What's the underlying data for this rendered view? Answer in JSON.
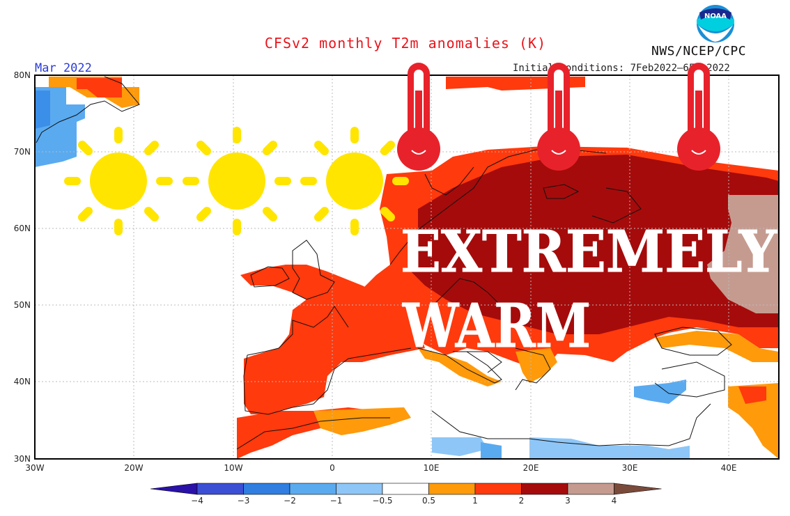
{
  "header": {
    "title": "CFSv2 monthly T2m anomalies (K)",
    "month": "Mar 2022",
    "init_conditions": "Initial conditions: 7Feb2022–6Feb2022",
    "agency": "NWS/NCEP/CPC",
    "logo_text": "NOAA"
  },
  "overlay": {
    "line1": "EXTREMELY",
    "line2": "WARM"
  },
  "axes": {
    "lat_labels": [
      "80N",
      "70N",
      "60N",
      "50N",
      "40N",
      "30N"
    ],
    "lon_labels": [
      "30W",
      "20W",
      "10W",
      "0",
      "10E",
      "20E",
      "30E",
      "40E"
    ]
  },
  "colorbar": {
    "labels": [
      "−4",
      "−3",
      "−2",
      "−1",
      "−0.5",
      "0.5",
      "1",
      "2",
      "3",
      "4"
    ],
    "colors": [
      "#2a11a8",
      "#3a4fd4",
      "#2f7ee0",
      "#5aaaf0",
      "#8ec6f7",
      "#ffffff",
      "#ff9a0a",
      "#ff3a0d",
      "#a50b0b",
      "#c69b8f",
      "#7a4a3a"
    ]
  },
  "icons": {
    "suns": [
      "sun-icon",
      "sun-icon",
      "sun-icon"
    ],
    "thermometers": [
      "thermometer-icon",
      "thermometer-icon",
      "thermometer-icon"
    ]
  },
  "colors": {
    "title": "#e8141b",
    "month": "#2a3bd8",
    "sun": "#ffe500",
    "thermometer": "#e8222b",
    "warm1": "#ff9a0a",
    "warm2": "#ff3a0d",
    "warm3": "#a50b0b",
    "warm4": "#c69b8f",
    "cool1": "#5aaaf0"
  }
}
